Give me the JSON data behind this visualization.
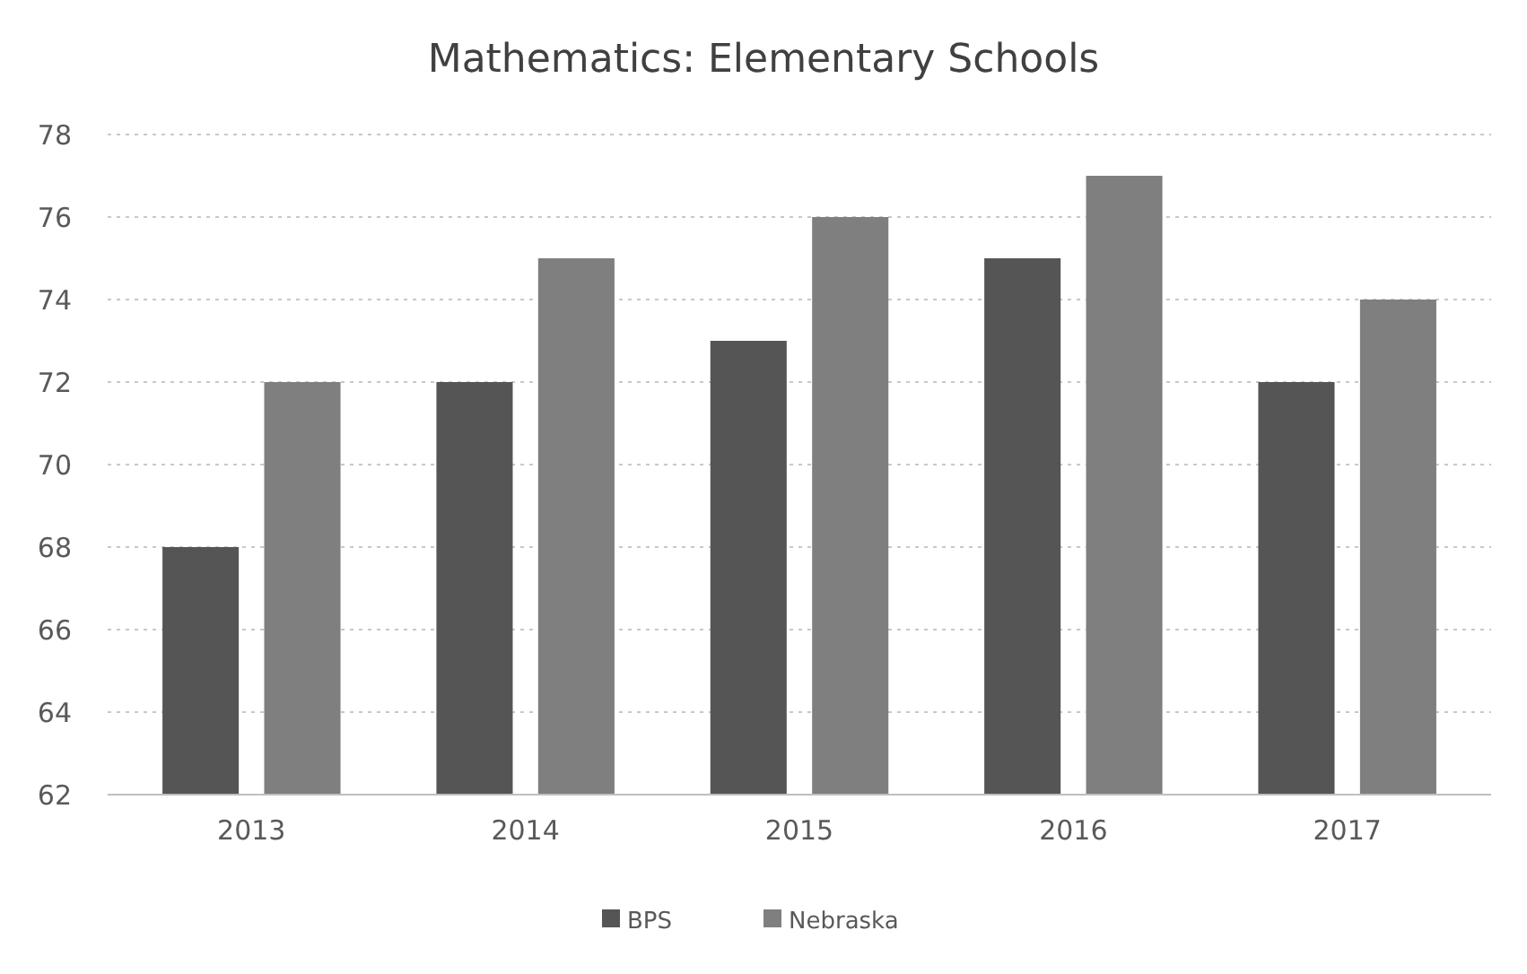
{
  "chart_data": {
    "type": "bar",
    "title": "Mathematics: Elementary Schools",
    "categories": [
      "2013",
      "2014",
      "2015",
      "2016",
      "2017"
    ],
    "series": [
      {
        "name": "BPS",
        "color": "#555555",
        "values": [
          68,
          72,
          73,
          75,
          72
        ]
      },
      {
        "name": "Nebraska",
        "color": "#7f7f7f",
        "values": [
          72,
          75,
          76,
          77,
          74
        ]
      }
    ],
    "ylim": [
      62,
      78
    ],
    "yticks": [
      62,
      64,
      66,
      68,
      70,
      72,
      74,
      76,
      78
    ],
    "grid": "y",
    "legend": "bottom"
  }
}
